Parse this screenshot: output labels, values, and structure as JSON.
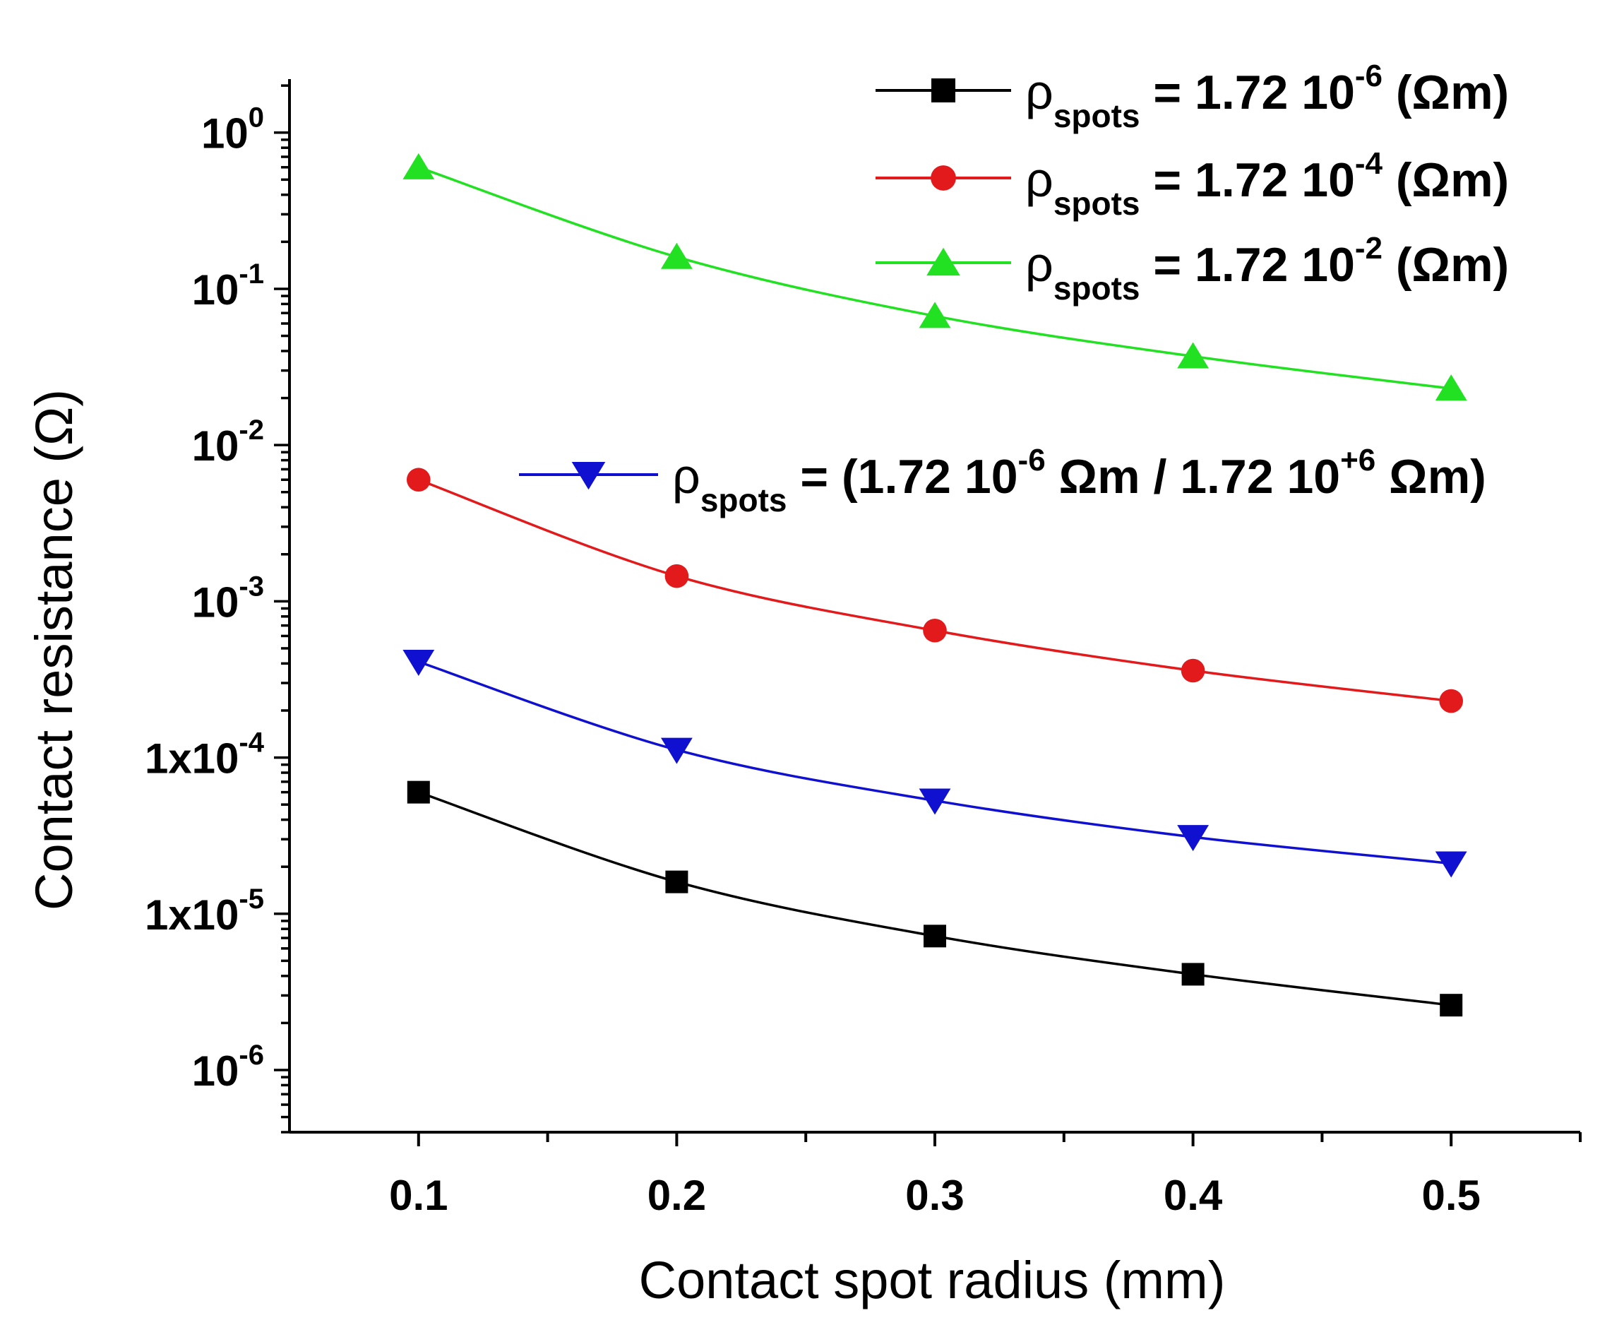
{
  "chart_data": {
    "type": "line",
    "title": "",
    "xlabel": "Contact spot radius (mm)",
    "ylabel": "Contact resistance (Ω)",
    "x": [
      0.1,
      0.2,
      0.3,
      0.4,
      0.5
    ],
    "xlim": [
      0.05,
      0.55
    ],
    "ylim": [
      4e-07,
      2.2
    ],
    "yscale": "log",
    "x_ticks": [
      {
        "value": 0.1,
        "label": "0.1"
      },
      {
        "value": 0.2,
        "label": "0.2"
      },
      {
        "value": 0.3,
        "label": "0.3"
      },
      {
        "value": 0.4,
        "label": "0.4"
      },
      {
        "value": 0.5,
        "label": "0.5"
      }
    ],
    "y_ticks": [
      {
        "exp": 0,
        "base": "10",
        "sup": "0"
      },
      {
        "exp": -1,
        "base": "10",
        "sup": "-1"
      },
      {
        "exp": -2,
        "base": "10",
        "sup": "-2"
      },
      {
        "exp": -3,
        "base": "10",
        "sup": "-3"
      },
      {
        "exp": -4,
        "base": "1x10",
        "sup": "-4"
      },
      {
        "exp": -5,
        "base": "1x10",
        "sup": "-5"
      },
      {
        "exp": -6,
        "base": "10",
        "sup": "-6"
      }
    ],
    "series": [
      {
        "name": "ρspots = 1.72 10-6 (Ωm)",
        "color": "#000000",
        "marker": "square",
        "values": [
          6e-05,
          1.6e-05,
          7.2e-06,
          4.1e-06,
          2.6e-06
        ],
        "legend": {
          "prefix": " = 1.72 10",
          "sup": "-6",
          "suffix": " (Ωm)"
        }
      },
      {
        "name": "ρspots = 1.72 10-4 (Ωm)",
        "color": "#e31a1c",
        "marker": "circle",
        "values": [
          0.006,
          0.00145,
          0.00065,
          0.00036,
          0.00023
        ],
        "legend": {
          "prefix": " = 1.72 10",
          "sup": "-4",
          "suffix": " (Ωm)"
        }
      },
      {
        "name": "ρspots = 1.72 10-2 (Ωm)",
        "color": "#22e022",
        "marker": "triangle-up",
        "values": [
          0.6,
          0.16,
          0.067,
          0.037,
          0.023
        ],
        "legend": {
          "prefix": " = 1.72 10",
          "sup": "-2",
          "suffix": " (Ωm)"
        }
      },
      {
        "name": "ρspots = (1.72 10-6 Ωm / 1.72 10+6 Ωm)",
        "color": "#1010d0",
        "marker": "triangle-down",
        "values": [
          0.00041,
          0.000112,
          5.3e-05,
          3.1e-05,
          2.1e-05
        ],
        "legend": {
          "prefix": " = (1.72 10",
          "sup": "-6",
          "mid": " Ωm / 1.72 10",
          "sup2": "+6",
          "suffix": " Ωm)"
        }
      }
    ],
    "legend_symbol": "ρ",
    "legend_subscript": "spots",
    "legend_position": "top-right"
  }
}
